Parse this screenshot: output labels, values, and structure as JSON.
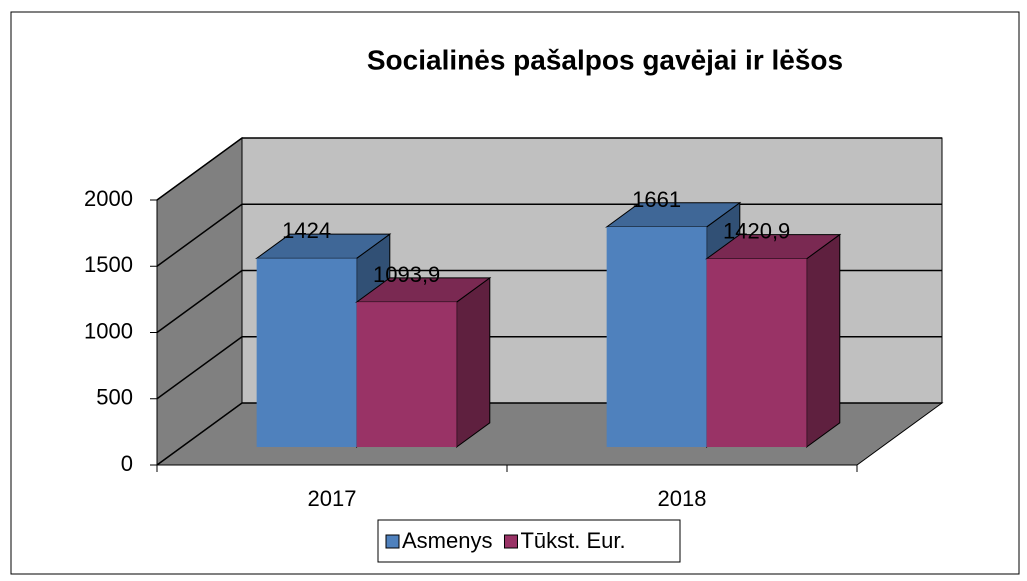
{
  "chart_data": {
    "type": "bar3d",
    "title": "Socialinės pašalpos gavėjai ir lėšos",
    "categories": [
      "2017",
      "2018"
    ],
    "series": [
      {
        "name": "Asmenys",
        "color": "#4f81bd",
        "values": [
          1424,
          1661
        ],
        "value_labels": [
          "1424",
          "1661"
        ]
      },
      {
        "name": "Tūkst. Eur.",
        "color": "#993366",
        "values": [
          1093.9,
          1420.9
        ],
        "value_labels": [
          "1093,9",
          "1420,9"
        ]
      }
    ],
    "ylim": [
      0,
      2000
    ],
    "yticks": [
      0,
      500,
      1000,
      1500,
      2000
    ],
    "grid": true,
    "legend": "bottom"
  }
}
